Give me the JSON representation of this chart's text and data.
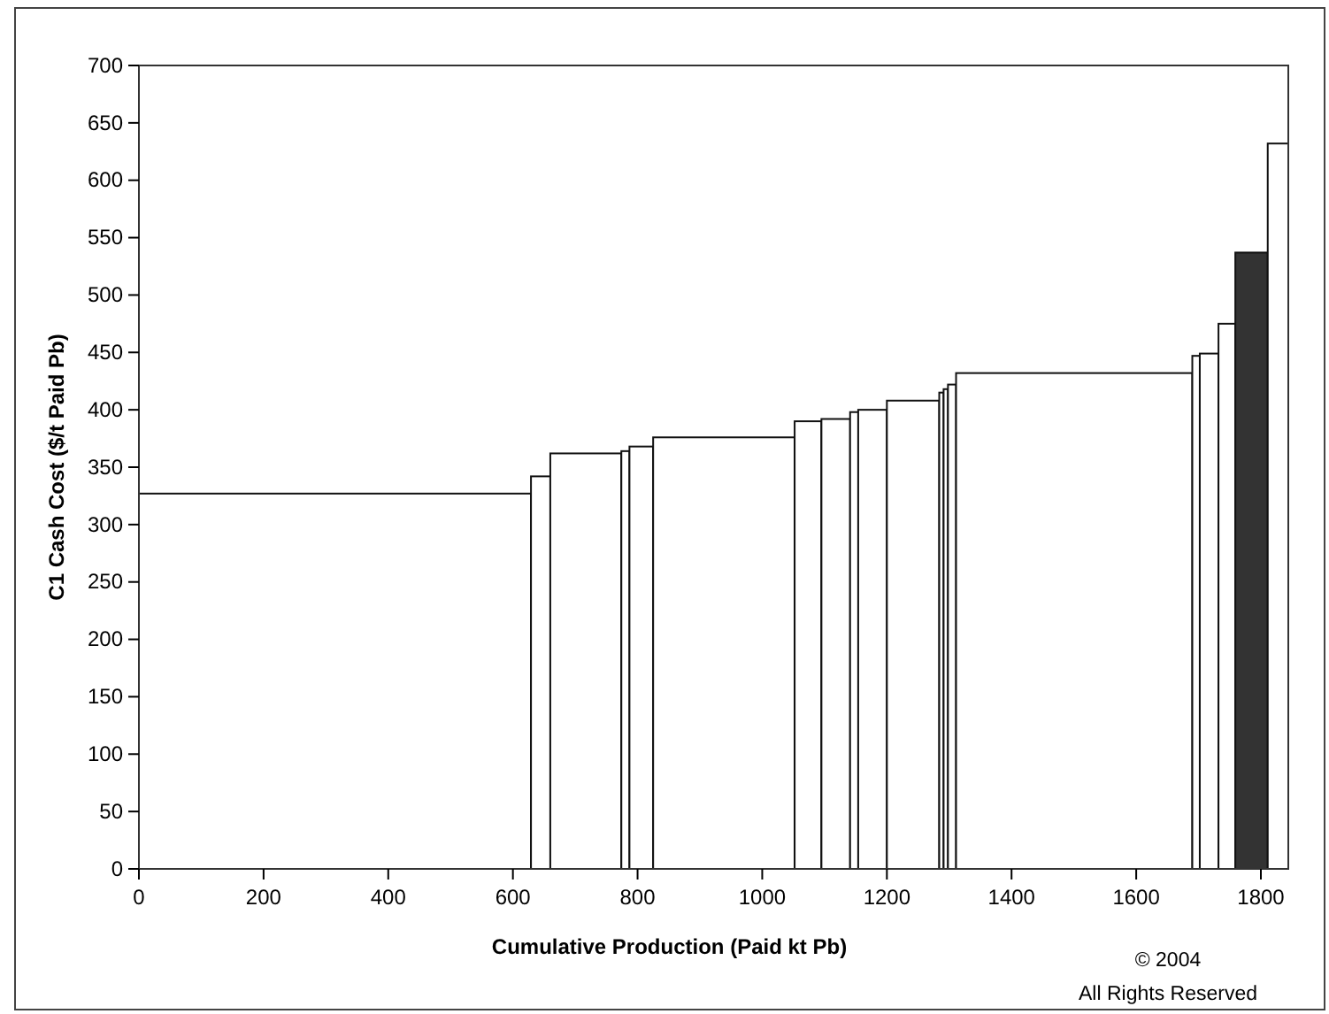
{
  "chart_data": {
    "type": "histogram",
    "xlabel": "Cumulative Production (Paid kt Pb)",
    "ylabel": "C1 Cash Cost ($/t Paid Pb)",
    "bins": [
      0,
      629,
      660,
      774,
      787,
      825,
      1052,
      1095,
      1141,
      1154,
      1200,
      1284,
      1291,
      1298,
      1311,
      1690,
      1702,
      1732,
      1759,
      1811,
      1844
    ],
    "values": [
      327,
      342,
      362,
      364,
      368,
      376,
      390,
      392,
      398,
      400,
      408,
      415,
      418,
      422,
      432,
      447,
      449,
      475,
      537,
      632
    ],
    "colors": [
      "#ffffff",
      "#ffffff",
      "#ffffff",
      "#ffffff",
      "#ffffff",
      "#ffffff",
      "#ffffff",
      "#ffffff",
      "#ffffff",
      "#ffffff",
      "#ffffff",
      "#ffffff",
      "#ffffff",
      "#ffffff",
      "#ffffff",
      "#ffffff",
      "#ffffff",
      "#ffffff",
      "#333333",
      "#ffffff"
    ],
    "xlim": [
      0,
      1844
    ],
    "xticks": [
      0,
      200,
      400,
      600,
      800,
      1000,
      1200,
      1400,
      1600,
      1800
    ],
    "ylim": [
      0,
      700
    ],
    "yticks": [
      0,
      50,
      100,
      150,
      200,
      250,
      300,
      350,
      400,
      450,
      500,
      550,
      600,
      650,
      700
    ],
    "grid": false,
    "annotations": [
      "© 2004",
      "All Rights Reserved"
    ]
  }
}
